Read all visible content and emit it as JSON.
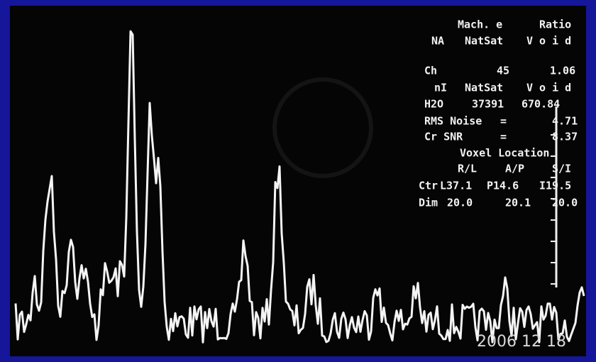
{
  "readout": {
    "rows": [
      [
        "Mach. e",
        "Ratio"
      ],
      [
        "NA",
        "NatSat",
        "V o i d"
      ],
      [
        "Ch",
        "45",
        "1.06"
      ],
      [
        "nI",
        "NatSat",
        "V o i d"
      ],
      [
        "H2O",
        "37391",
        "670.84"
      ],
      [
        "RMS Noise",
        "=",
        "4.71"
      ],
      [
        "Cr SNR",
        "=",
        "8.37"
      ],
      [
        "Voxel Location"
      ],
      [
        "R/L",
        "A/P",
        "S/I"
      ],
      [
        "Ctr",
        "L37.1",
        "P14.6",
        "I19.5"
      ],
      [
        "Dim",
        "20.0",
        "20.1",
        "20.0"
      ]
    ]
  },
  "date": "2006 12 18"
}
